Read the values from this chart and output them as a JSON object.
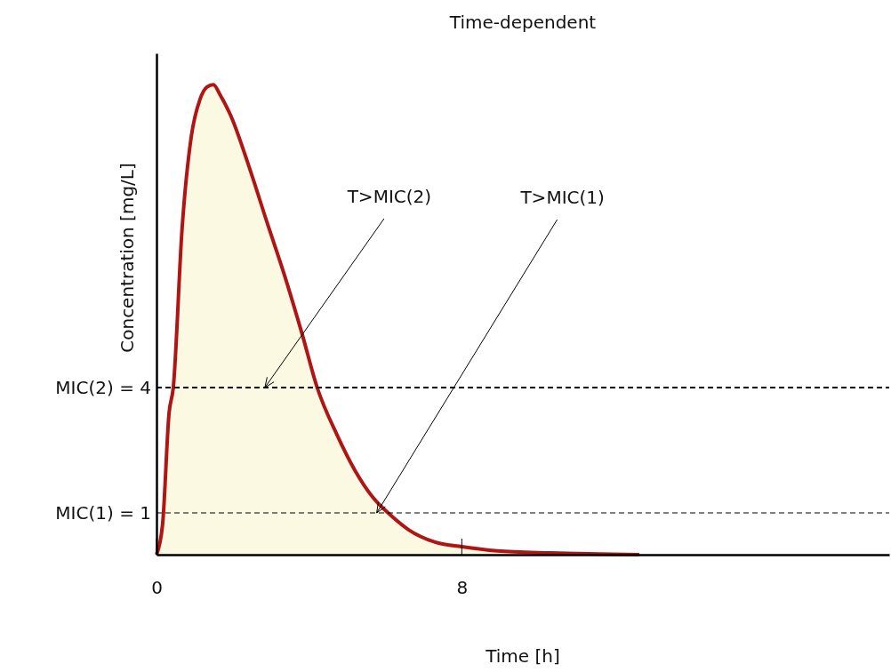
{
  "chart_data": {
    "type": "area",
    "title": "Time-dependent",
    "xlabel": "Time [h]",
    "ylabel": "Concentration [mg/L]",
    "xlim": [
      0,
      19.2
    ],
    "xticks": [
      0,
      8
    ],
    "ylim": [
      0,
      12
    ],
    "tick_labels": "x",
    "grid": false,
    "marker": "none",
    "line_style": "solid",
    "series": [
      {
        "color": "#b01515",
        "x": [
          0,
          0.16,
          0.33,
          0.44,
          0.67,
          0.91,
          1.14,
          1.33,
          1.49,
          1.67,
          1.95,
          2.42,
          2.88,
          3.35,
          3.81,
          4.21,
          4.74,
          5.21,
          5.67,
          6.14,
          6.6,
          7.3,
          8.0,
          8.93,
          10.33,
          12.65
        ],
        "values": [
          0,
          0.73,
          3.4,
          4.0,
          7.8,
          10.0,
          10.9,
          11.2,
          11.25,
          11.0,
          10.5,
          9.3,
          8.0,
          6.7,
          5.3,
          4.0,
          2.85,
          2.0,
          1.37,
          0.94,
          0.6,
          0.3,
          0.19,
          0.09,
          0.04,
          0
        ]
      }
    ],
    "ref_lines": [
      {
        "axis": "y",
        "value": 4,
        "label": "MIC(2) = 4",
        "line_style": "dashed",
        "color": "#000000"
      },
      {
        "axis": "y",
        "value": 1,
        "label": "MIC(1) = 1",
        "line_style": "dashed",
        "color": "#000000"
      }
    ],
    "annotations": [
      {
        "text": "T>MIC(2)",
        "x": 2.84,
        "y": 4
      },
      {
        "text": "T>MIC(1)",
        "x": 5.77,
        "y": 1
      }
    ]
  }
}
